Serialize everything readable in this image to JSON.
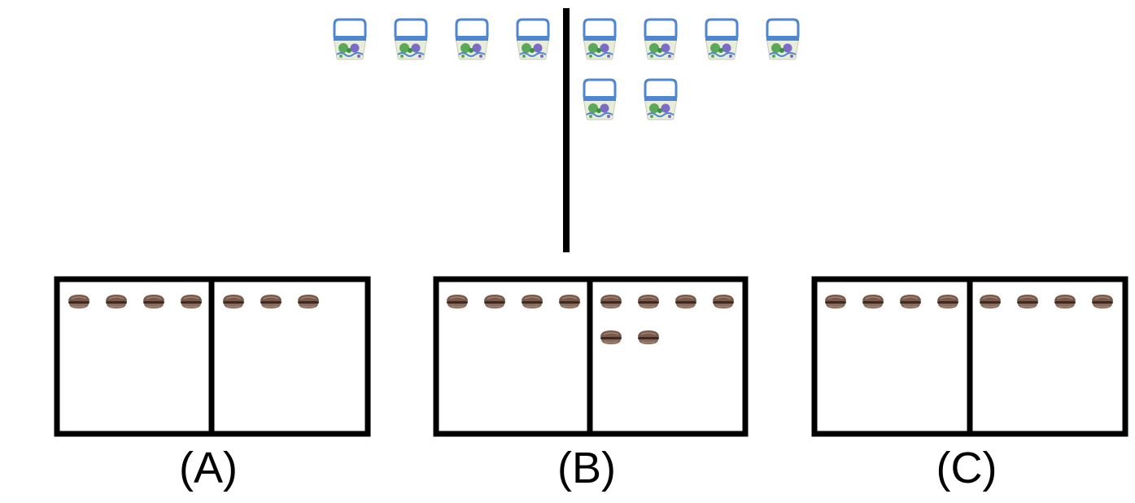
{
  "top": {
    "left_group": {
      "basket_count": 4
    },
    "right_group": {
      "basket_count": 6
    },
    "icon": "basket-icon"
  },
  "options": [
    {
      "label": "(A)",
      "left_count": 4,
      "right_count": 3
    },
    {
      "label": "(B)",
      "left_count": 4,
      "right_count": 6
    },
    {
      "label": "(C)",
      "left_count": 4,
      "right_count": 4
    }
  ],
  "option_icon": "burger-icon",
  "colors": {
    "stroke": "#000000",
    "basket_blue": "#4f86d2",
    "basket_body": "#e8edd9",
    "basket_green": "#5aa858",
    "basket_purple": "#7b6cc7",
    "burger_bun": "#7a5a4a",
    "burger_bun_light": "#a8897a",
    "burger_filling": "#3f2a22"
  }
}
